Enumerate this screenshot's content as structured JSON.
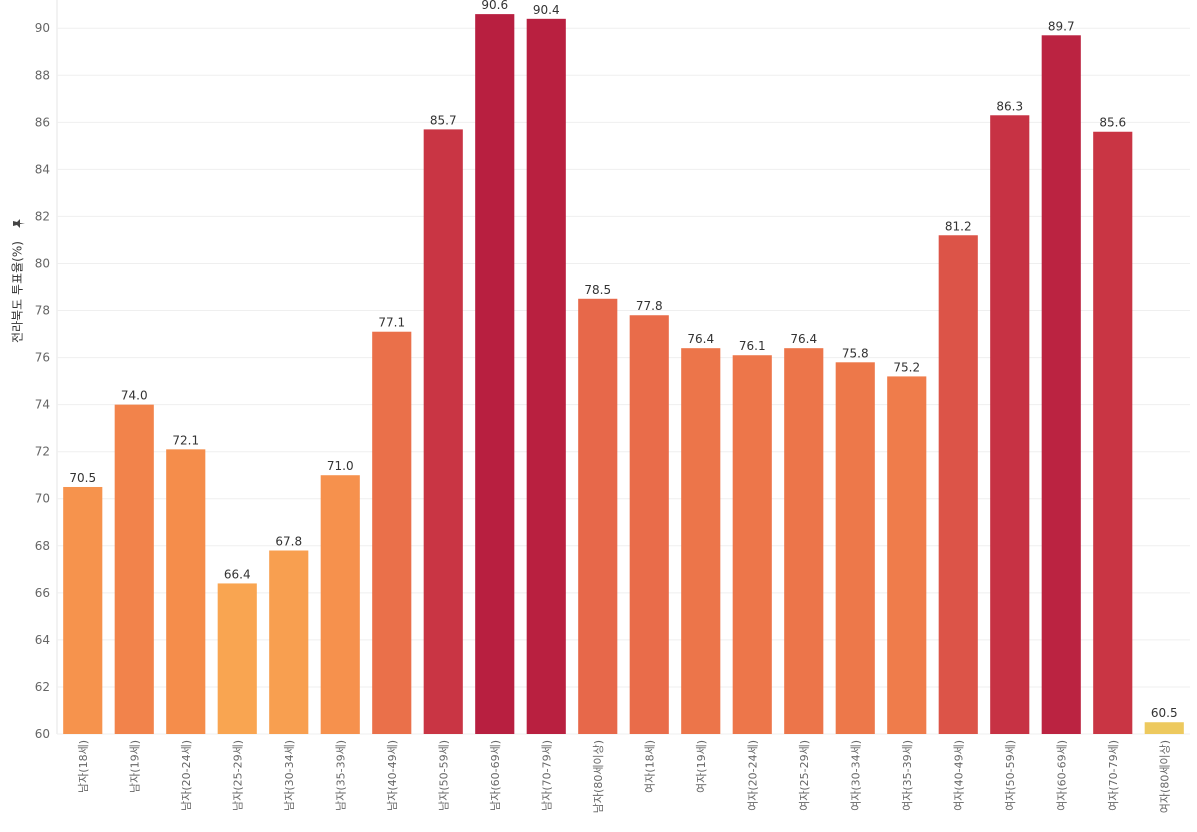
{
  "chart_data": {
    "type": "bar",
    "title": "",
    "xlabel": "",
    "ylabel": "전라북도 투표율(%)",
    "ylabel_icon": "pin-icon",
    "ylim": [
      60,
      91.2
    ],
    "yticks": [
      60,
      62,
      64,
      66,
      68,
      70,
      72,
      74,
      76,
      78,
      80,
      82,
      84,
      86,
      88,
      90
    ],
    "grid": true,
    "legend": "none",
    "categories": [
      "남자(18세)",
      "남자(19세)",
      "남자(20-24세)",
      "남자(25-29세)",
      "남자(30-34세)",
      "남자(35-39세)",
      "남자(40-49세)",
      "남자(50-59세)",
      "남자(60-69세)",
      "남자(70-79세)",
      "남자(80세이상)",
      "여자(18세)",
      "여자(19세)",
      "여자(20-24세)",
      "여자(25-29세)",
      "여자(30-34세)",
      "여자(35-39세)",
      "여자(40-49세)",
      "여자(50-59세)",
      "여자(60-69세)",
      "여자(70-79세)",
      "여자(80세이상)"
    ],
    "values": [
      70.5,
      74.0,
      72.1,
      66.4,
      67.8,
      71.0,
      77.1,
      85.7,
      90.6,
      90.4,
      78.5,
      77.8,
      76.4,
      76.1,
      76.4,
      75.8,
      75.2,
      81.2,
      86.3,
      89.7,
      85.6,
      60.5
    ],
    "value_labels": [
      "70.5",
      "74.0",
      "72.1",
      "66.4",
      "67.8",
      "71.0",
      "77.1",
      "85.7",
      "90.6",
      "90.4",
      "78.5",
      "77.8",
      "76.4",
      "76.1",
      "76.4",
      "75.8",
      "75.2",
      "81.2",
      "86.3",
      "89.7",
      "85.6",
      "60.5"
    ],
    "color_scale": {
      "low": 60.5,
      "high": 90.6,
      "stops": [
        "#EDC95E",
        "#F9A451",
        "#F58B4B",
        "#E7684A",
        "#CD3A45",
        "#B81F40"
      ]
    }
  }
}
